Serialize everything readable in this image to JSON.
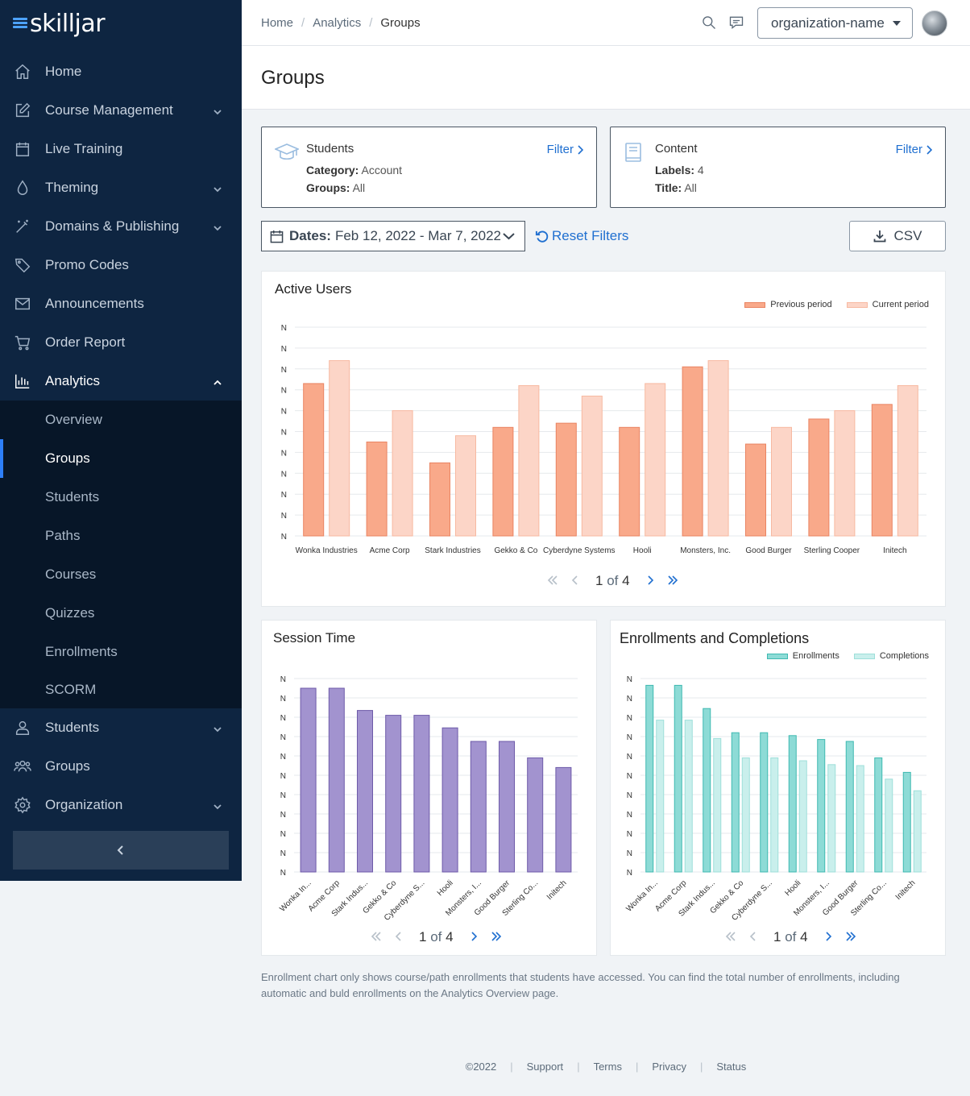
{
  "brand": {
    "name": "skilljar"
  },
  "sidebar": {
    "items": [
      {
        "label": "Home",
        "icon": "home-icon"
      },
      {
        "label": "Course Management",
        "icon": "edit-icon",
        "expandable": true
      },
      {
        "label": "Live Training",
        "icon": "calendar-icon"
      },
      {
        "label": "Theming",
        "icon": "droplet-icon",
        "expandable": true
      },
      {
        "label": "Domains & Publishing",
        "icon": "magic-wand-icon",
        "expandable": true
      },
      {
        "label": "Promo Codes",
        "icon": "tag-icon"
      },
      {
        "label": "Announcements",
        "icon": "mail-icon"
      },
      {
        "label": "Order Report",
        "icon": "cart-icon"
      },
      {
        "label": "Analytics",
        "icon": "bar-chart-icon",
        "expanded": true
      }
    ],
    "analytics_sub": [
      "Overview",
      "Groups",
      "Students",
      "Paths",
      "Courses",
      "Quizzes",
      "Enrollments",
      "SCORM"
    ],
    "active_sub": "Groups",
    "bottom_items": [
      {
        "label": "Students",
        "icon": "user-icon",
        "expandable": true
      },
      {
        "label": "Groups",
        "icon": "users-icon"
      },
      {
        "label": "Organization",
        "icon": "gear-icon",
        "expandable": true
      }
    ]
  },
  "header": {
    "breadcrumb": [
      "Home",
      "Analytics",
      "Groups"
    ],
    "org_name": "organization-name"
  },
  "page": {
    "title": "Groups"
  },
  "filters": {
    "students": {
      "title": "Students",
      "link": "Filter",
      "row1_key": "Category:",
      "row1_val": "Account",
      "row2_key": "Groups:",
      "row2_val": "All"
    },
    "content": {
      "title": "Content",
      "link": "Filter",
      "row1_key": "Labels:",
      "row1_val": "4",
      "row2_key": "Title:",
      "row2_val": "All"
    },
    "dates_label": "Dates:",
    "dates_value": "Feb 12, 2022 - Mar 7, 2022",
    "reset_label": "Reset Filters",
    "csv_label": "CSV"
  },
  "pager": {
    "page": "1",
    "of": "of",
    "total": "4"
  },
  "chart_data": [
    {
      "type": "bar",
      "title": "Active Users",
      "categories": [
        "Wonka Industries",
        "Acme Corp",
        "Stark Industries",
        "Gekko & Co",
        "Cyberdyne Systems",
        "Hooli",
        "Monsters, Inc.",
        "Good Burger",
        "Sterling Cooper",
        "Initech"
      ],
      "series": [
        {
          "name": "Previous period",
          "values": [
            73,
            45,
            35,
            52,
            54,
            52,
            81,
            44,
            56,
            63
          ]
        },
        {
          "name": "Current period",
          "values": [
            84,
            60,
            48,
            72,
            67,
            73,
            84,
            52,
            60,
            72
          ]
        }
      ],
      "ytick_labels": [
        "N",
        "N",
        "N",
        "N",
        "N",
        "N",
        "N",
        "N",
        "N",
        "N",
        "N"
      ],
      "ylim": [
        0,
        100
      ],
      "colors": [
        "#f9a98a",
        "#fcd5c7"
      ],
      "stroke_colors": [
        "#e98462",
        "#f7b9a1"
      ],
      "legend": "top-right"
    },
    {
      "type": "bar",
      "title": "Session Time",
      "categories": [
        "Wonka In...",
        "Acme Corp",
        "Stark Indus...",
        "Gekko & Co",
        "Cyberdyne S...",
        "Hooli",
        "Monsters, I...",
        "Good Burger",
        "Sterling Co...",
        "Initech"
      ],
      "series": [
        {
          "values": [
            95,
            95,
            83.5,
            81,
            81,
            74.5,
            67.5,
            67.5,
            59,
            54
          ]
        }
      ],
      "ytick_labels": [
        "N",
        "N",
        "N",
        "N",
        "N",
        "N",
        "N",
        "N",
        "N",
        "N",
        "N"
      ],
      "ylim": [
        0,
        100
      ],
      "colors": [
        "#a293cf"
      ],
      "stroke_colors": [
        "#6d5aa8"
      ]
    },
    {
      "type": "bar",
      "title": "Enrollments and Completions",
      "categories": [
        "Wonka In...",
        "Acme Corp",
        "Stark Indus...",
        "Gekko & Co",
        "Cyberdyne S...",
        "Hooli",
        "Monsters, I...",
        "Good Burger",
        "Sterling Co...",
        "Initech"
      ],
      "series": [
        {
          "name": "Enrollments",
          "values": [
            96.5,
            96.5,
            84.5,
            72,
            72,
            70.5,
            68.5,
            67.5,
            59,
            51.5
          ]
        },
        {
          "name": "Completions",
          "values": [
            78.5,
            78.5,
            69,
            59,
            59,
            57.5,
            55.5,
            55,
            48,
            42
          ]
        }
      ],
      "ytick_labels": [
        "N",
        "N",
        "N",
        "N",
        "N",
        "N",
        "N",
        "N",
        "N",
        "N",
        "N"
      ],
      "ylim": [
        0,
        100
      ],
      "colors": [
        "#8ddbd6",
        "#c9efec"
      ],
      "stroke_colors": [
        "#3fb9b1",
        "#9edfda"
      ],
      "legend": "top-right"
    }
  ],
  "footnote": "Enrollment chart only shows course/path enrollments that students have accessed. You can find the total number of enrollments, including automatic and buld enrollments on the Analytics Overview page.",
  "footer": {
    "copyright": "©2022",
    "links": [
      "Support",
      "Terms",
      "Privacy",
      "Status"
    ]
  }
}
